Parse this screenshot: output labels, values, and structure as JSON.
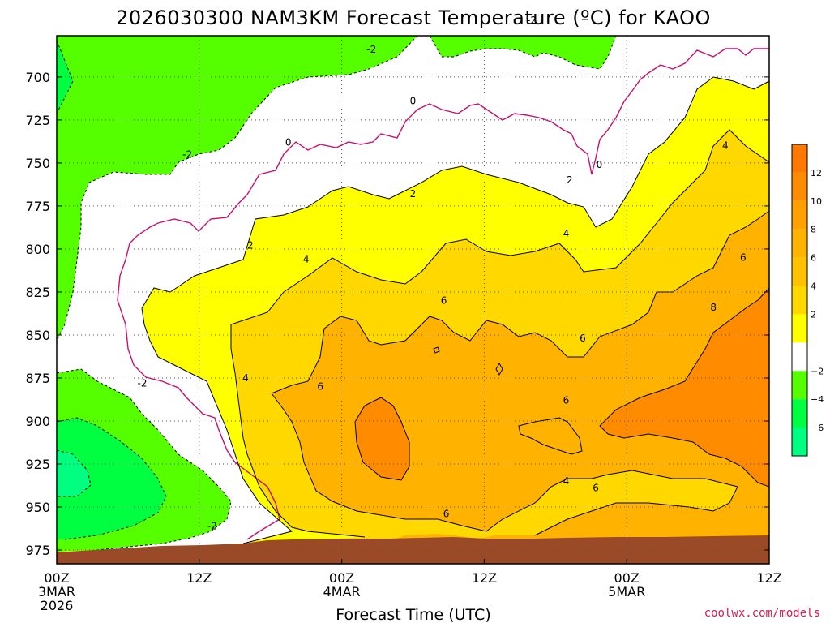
{
  "chart_data": {
    "type": "heatmap",
    "title": "2026030300 NAM3KM Forecast Temperature (ºC) for KAOO",
    "xlabel": "Forecast Time (UTC)",
    "ylabel": "",
    "credit": "coolwx.com/models",
    "x_ticks": [
      {
        "hour": 0,
        "lines": [
          "00Z",
          "3MAR",
          "2026"
        ]
      },
      {
        "hour": 12,
        "lines": [
          "12Z"
        ]
      },
      {
        "hour": 24,
        "lines": [
          "00Z",
          "4MAR"
        ]
      },
      {
        "hour": 36,
        "lines": [
          "12Z"
        ]
      },
      {
        "hour": 48,
        "lines": [
          "00Z",
          "5MAR"
        ]
      },
      {
        "hour": 60,
        "lines": [
          "12Z"
        ]
      }
    ],
    "xlim": [
      0,
      60
    ],
    "y_ticks": [
      700,
      725,
      750,
      775,
      800,
      825,
      850,
      875,
      900,
      925,
      950,
      975
    ],
    "ylim": [
      676,
      983
    ],
    "y_inverted": true,
    "grid": true,
    "colorbar": {
      "labels": [
        "12",
        "10",
        "8",
        "6",
        "4",
        "2",
        "−2",
        "−4",
        "−6"
      ],
      "bands": [
        {
          "color": "#ff7800"
        },
        {
          "color": "#ff8c00"
        },
        {
          "color": "#ffa000"
        },
        {
          "color": "#ffb300"
        },
        {
          "color": "#ffc200"
        },
        {
          "color": "#ffd800"
        },
        {
          "color": "#ffff00"
        },
        {
          "color": "#ffffff"
        },
        {
          "color": "#55ff00"
        },
        {
          "color": "#00ff40"
        },
        {
          "color": "#00ff80"
        }
      ]
    },
    "temperature_fill": [
      {
        "temp_range": "< -4",
        "color": "#00ff80"
      },
      {
        "temp_range": "-4 to -2",
        "color": "#55ff00"
      },
      {
        "temp_range": "-2 to 2",
        "color": "#ffffff"
      },
      {
        "temp_range": "2 to 4",
        "color": "#ffff00"
      },
      {
        "temp_range": "4 to 6",
        "color": "#ffd800"
      },
      {
        "temp_range": "6 to 8",
        "color": "#ffb300"
      },
      {
        "temp_range": "> 8",
        "color": "#ff8c00"
      }
    ],
    "terrain_color": "#9a4a26",
    "contour_labels": [
      {
        "text": "-2",
        "hour": 26.5,
        "p": 684
      },
      {
        "text": "-2",
        "hour": 40,
        "p": 667
      },
      {
        "text": "-2",
        "hour": 11.0,
        "p": 745
      },
      {
        "text": "-2",
        "hour": 7.2,
        "p": 878
      },
      {
        "text": "-2",
        "hour": 13.1,
        "p": 961
      },
      {
        "text": "0",
        "hour": 30.0,
        "p": 714
      },
      {
        "text": "0",
        "hour": 19.5,
        "p": 738
      },
      {
        "text": "0",
        "hour": 45.7,
        "p": 751
      },
      {
        "text": "2",
        "hour": 30.0,
        "p": 768
      },
      {
        "text": "2",
        "hour": 43.2,
        "p": 760
      },
      {
        "text": "2",
        "hour": 16.3,
        "p": 798
      },
      {
        "text": "4",
        "hour": 56.3,
        "p": 740
      },
      {
        "text": "4",
        "hour": 42.9,
        "p": 791
      },
      {
        "text": "4",
        "hour": 21.0,
        "p": 806
      },
      {
        "text": "4",
        "hour": 15.9,
        "p": 875
      },
      {
        "text": "4",
        "hour": 42.9,
        "p": 935
      },
      {
        "text": "6",
        "hour": 57.8,
        "p": 805
      },
      {
        "text": "6",
        "hour": 32.6,
        "p": 830
      },
      {
        "text": "6",
        "hour": 44.3,
        "p": 852
      },
      {
        "text": "6",
        "hour": 22.2,
        "p": 880
      },
      {
        "text": "6",
        "hour": 42.9,
        "p": 888
      },
      {
        "text": "6",
        "hour": 45.4,
        "p": 939
      },
      {
        "text": "6",
        "hour": 32.8,
        "p": 954
      },
      {
        "text": "8",
        "hour": 55.3,
        "p": 834
      }
    ]
  }
}
